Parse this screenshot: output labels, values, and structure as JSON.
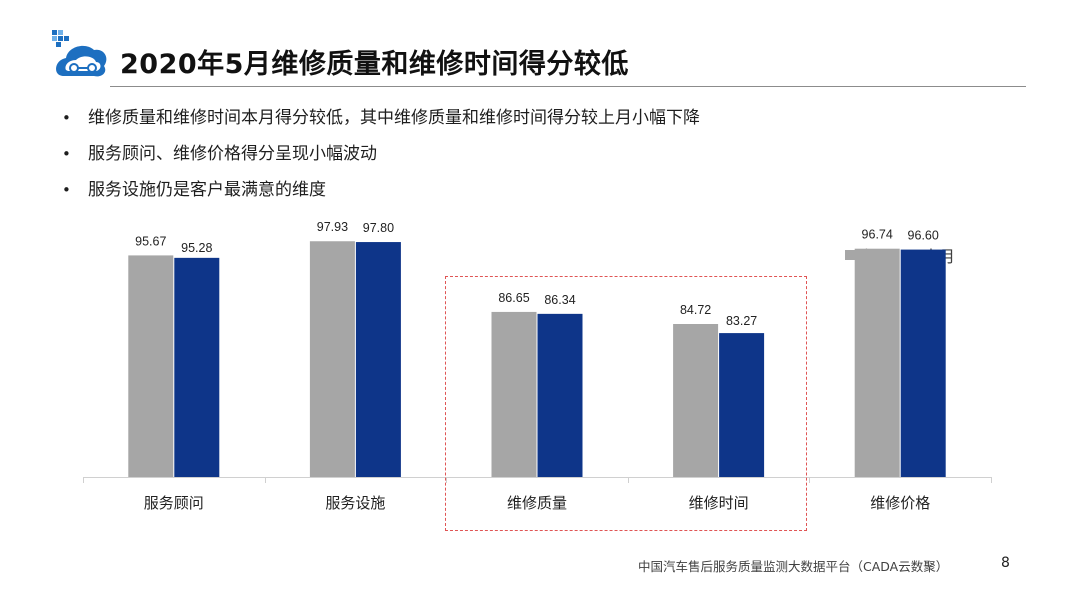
{
  "header": {
    "title": "2020年5月维修质量和维修时间得分较低"
  },
  "bullets": [
    "维修质量和维修时间本月得分较低，其中维修质量和维修时间得分较上月小幅下降",
    "服务顾问、维修价格得分呈现小幅波动",
    "服务设施仍是客户最满意的维度"
  ],
  "bullet_glyph": "•",
  "colors": {
    "last_month": "#a6a6a6",
    "this_month": "#0e3589",
    "highlight": "#e05555",
    "logo_blue": "#1d6fc0"
  },
  "chart_data": {
    "type": "bar",
    "categories": [
      "服务顾问",
      "服务设施",
      "维修质量",
      "维修时间",
      "维修价格"
    ],
    "series": [
      {
        "name": "上月",
        "values": [
          95.67,
          97.93,
          86.65,
          84.72,
          96.74
        ],
        "color": "#a6a6a6"
      },
      {
        "name": "本月",
        "values": [
          95.28,
          97.8,
          86.34,
          83.27,
          96.6
        ],
        "color": "#0e3589"
      }
    ],
    "data_labels": [
      [
        "95.67",
        "97.93",
        "86.65",
        "84.72",
        "96.74"
      ],
      [
        "95.28",
        "97.80",
        "86.34",
        "83.27",
        "96.60"
      ]
    ],
    "highlighted_categories": [
      "维修质量",
      "维修时间"
    ],
    "legend_position": "top-right",
    "grid": false
  },
  "footer": {
    "source": "中国汽车售后服务质量监测大数据平台（CADA云数聚）",
    "page": "8"
  }
}
